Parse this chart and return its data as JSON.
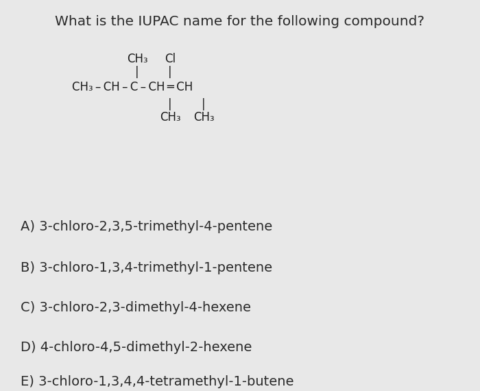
{
  "background_color": "#e8e8e8",
  "title": "What is the IUPAC name for the following compound?",
  "title_fontsize": 14.5,
  "options": [
    "A) 3-chloro-2,3,5-trimethyl-4-pentene",
    "B) 3-chloro-1,3,4-trimethyl-1-pentene",
    "C) 3-chloro-2,3-dimethyl-4-hexene",
    "D) 4-chloro-4,5-dimethyl-2-hexene",
    "E) 3-chloro-1,3,4,4-tetramethyl-1-butene"
  ],
  "options_fontsize": 14.0,
  "text_color": "#2a2a2a",
  "struct_fontsize": 12.0,
  "struct_color": "#1a1a1a"
}
